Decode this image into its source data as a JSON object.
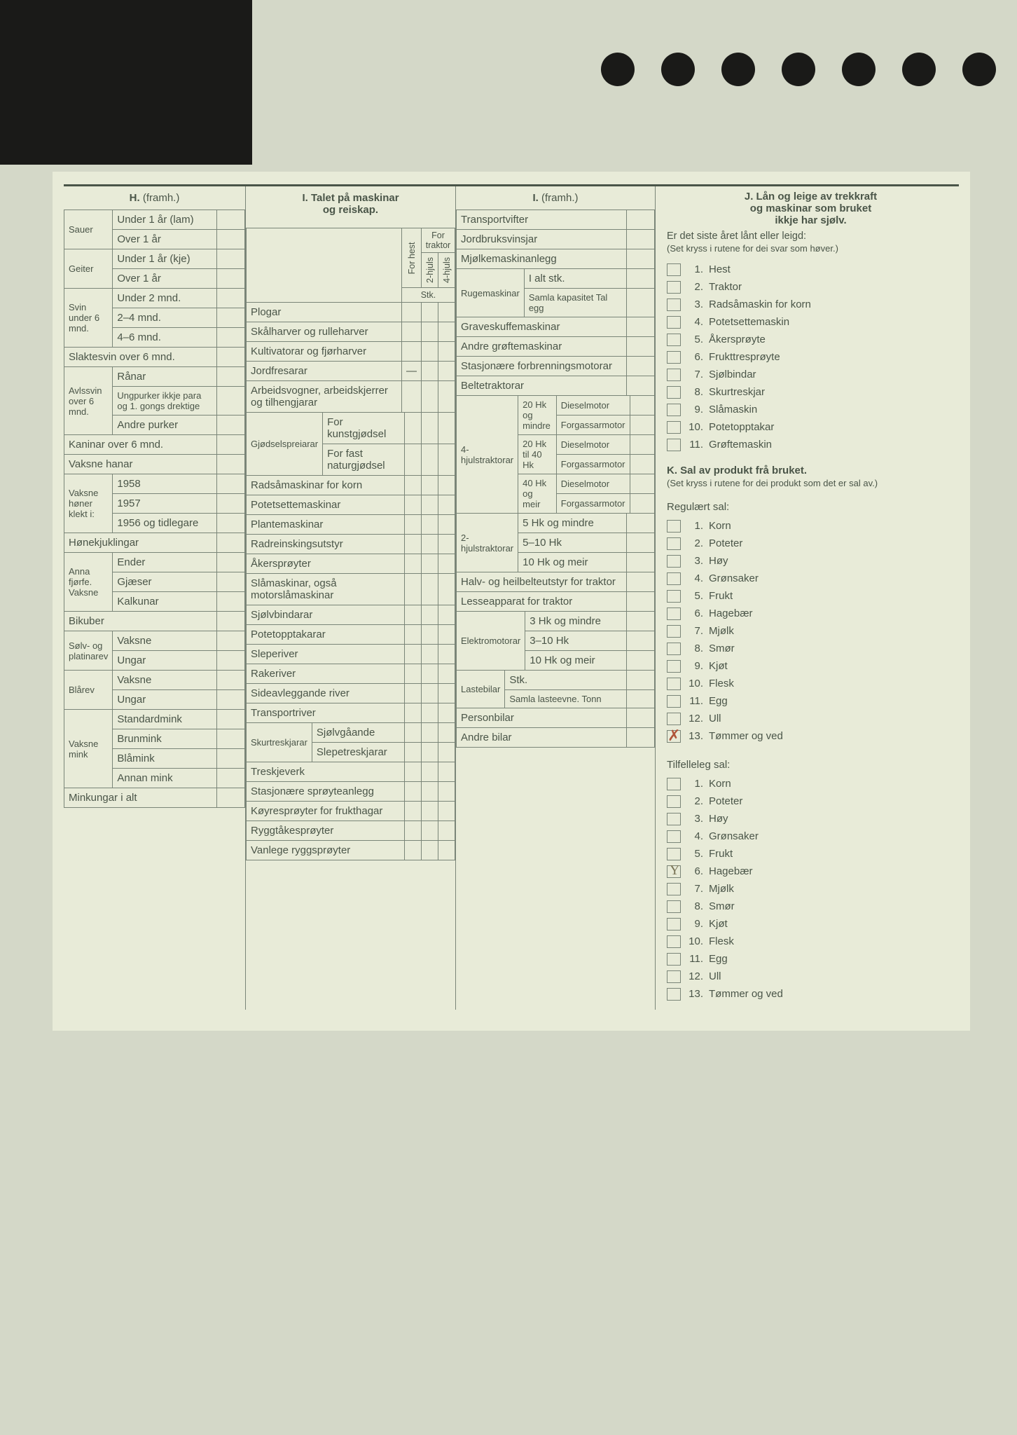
{
  "background_color": "#d4d8c8",
  "sheet_color": "#e8ebd8",
  "border_color": "#7a8578",
  "text_color": "#4a5548",
  "handwriting_color": "#b0553a",
  "sectionH": {
    "title": "H.",
    "title_suffix": "(framh.)",
    "groups": [
      {
        "label": "Sauer",
        "rows": [
          "Under 1 år (lam)",
          "Over 1 år"
        ]
      },
      {
        "label": "Geiter",
        "rows": [
          "Under 1 år (kje)",
          "Over 1 år"
        ]
      },
      {
        "label": "Svin under 6 mnd.",
        "rows": [
          "Under 2 mnd.",
          "2–4 mnd.",
          "4–6 mnd."
        ]
      },
      {
        "label": "Slaktesvin over 6 mnd.",
        "rows": []
      },
      {
        "label": "Avlssvin over 6 mnd.",
        "rows": [
          "Rånar",
          "Ungpurker ikkje para og 1. gongs drektige",
          "Andre purker"
        ]
      },
      {
        "label": "Kaninar over 6 mnd.",
        "rows": []
      },
      {
        "label": "Vaksne hanar",
        "rows": []
      },
      {
        "label": "Vaksne høner klekt i:",
        "rows": [
          "1958",
          "1957",
          "1956 og tidlegare"
        ]
      },
      {
        "label": "Hønekjuklingar",
        "rows": []
      },
      {
        "label": "Anna fjørfe. Vaksne",
        "rows": [
          "Ender",
          "Gjæser",
          "Kalkunar"
        ]
      },
      {
        "label": "Bikuber",
        "rows": []
      },
      {
        "label": "Sølv- og platinarev",
        "rows": [
          "Vaksne",
          "Ungar"
        ]
      },
      {
        "label": "Blårev",
        "rows": [
          "Vaksne",
          "Ungar"
        ]
      },
      {
        "label": "Vaksne mink",
        "rows": [
          "Standardmink",
          "Brunmink",
          "Blåmink",
          "Annan mink"
        ]
      },
      {
        "label": "Minkungar i alt",
        "rows": []
      }
    ]
  },
  "sectionI1": {
    "title_line1": "I. Talet på maskinar",
    "title_line2": "og reiskap.",
    "col_headers": {
      "group": "For traktor",
      "c1": "For hest",
      "c2": "2-hjuls",
      "c3": "4-hjuls"
    },
    "stk_label": "Stk.",
    "rows": [
      "Plogar",
      "Skålharver og rulleharver",
      "Kultivatorar og fjørharver",
      "Jordfresarar",
      "Arbeidsvogner, arbeidskjerrer og tilhengjarar"
    ],
    "gjodsel": {
      "label": "Gjødselspreiarar",
      "rows": [
        "For kunstgjødsel",
        "For fast naturgjødsel"
      ]
    },
    "rows2": [
      "Radsåmaskinar for korn",
      "Potetsettemaskinar",
      "Plantemaskinar",
      "Radreinskingsutstyr",
      "Åkersprøyter",
      "Slåmaskinar, også motorslåmaskinar",
      "Sjølvbindarar",
      "Potetopptakarar",
      "Sleperiver",
      "Rakeriver",
      "Sideavleggande river",
      "Transportriver"
    ],
    "skur": {
      "label": "Skurtreskjarar",
      "rows": [
        "Sjølvgåande",
        "Slepetreskjarar"
      ]
    },
    "rows3": [
      "Treskjeverk",
      "Stasjonære sprøyteanlegg",
      "Køyresprøyter for frukthagar",
      "Ryggtåkesprøyter",
      "Vanlege ryggsprøyter"
    ]
  },
  "sectionI2": {
    "title": "I.",
    "title_suffix": "(framh.)",
    "rows_top": [
      "Transportvifter",
      "Jordbruksvinsjar",
      "Mjølkemaskinanlegg"
    ],
    "ruge": {
      "label": "Rugemaskinar",
      "rows": [
        "I alt stk.",
        "Samla kapasitet Tal egg"
      ]
    },
    "rows_mid": [
      "Graveskuffemaskinar",
      "Andre grøftemaskinar",
      "Stasjonære forbrenningsmotorar",
      "Beltetraktorar"
    ],
    "traktor4": {
      "label": "4-hjulstraktorar",
      "groups": [
        {
          "hk": "20 Hk og mindre",
          "rows": [
            "Dieselmotor",
            "Forgassarmotor"
          ]
        },
        {
          "hk": "20 Hk til 40 Hk",
          "rows": [
            "Dieselmotor",
            "Forgassarmotor"
          ]
        },
        {
          "hk": "40 Hk og meir",
          "rows": [
            "Dieselmotor",
            "Forgassarmotor"
          ]
        }
      ]
    },
    "traktor2": {
      "label": "2-hjulstraktorar",
      "rows": [
        "5 Hk og mindre",
        "5–10 Hk",
        "10 Hk og meir"
      ]
    },
    "rows_bot1": [
      "Halv- og heilbelteutstyr for traktor",
      "Lesseapparat for traktor"
    ],
    "elektro": {
      "label": "Elektromotorar",
      "rows": [
        "3 Hk og mindre",
        "3–10 Hk",
        "10 Hk og meir"
      ]
    },
    "laste": {
      "label": "Lastebilar",
      "rows": [
        "Stk.",
        "Samla lasteevne. Tonn"
      ]
    },
    "rows_bot2": [
      "Personbilar",
      "Andre bilar"
    ]
  },
  "sectionJ": {
    "title_line1": "J. Lån og leige av trekkraft",
    "title_line2": "og maskinar som bruket",
    "title_line3": "ikkje har sjølv.",
    "intro": "Er det siste året lånt eller leigd:",
    "note": "(Set kryss i rutene for dei svar som høver.)",
    "items": [
      "Hest",
      "Traktor",
      "Radsåmaskin for korn",
      "Potetsettemaskin",
      "Åkersprøyte",
      "Frukttresprøyte",
      "Sjølbindar",
      "Skurtreskjar",
      "Slåmaskin",
      "Potetopptakar",
      "Grøftemaskin"
    ]
  },
  "sectionK": {
    "title": "K. Sal av produkt frå bruket.",
    "note": "(Set kryss i rutene for dei produkt som det er sal av.)",
    "sub1": "Regulært sal:",
    "items1": [
      "Korn",
      "Poteter",
      "Høy",
      "Grønsaker",
      "Frukt",
      "Hagebær",
      "Mjølk",
      "Smør",
      "Kjøt",
      "Flesk",
      "Egg",
      "Ull",
      "Tømmer og ved"
    ],
    "sub2": "Tilfelleleg sal:",
    "items2": [
      "Korn",
      "Poteter",
      "Høy",
      "Grønsaker",
      "Frukt",
      "Hagebær",
      "Mjølk",
      "Smør",
      "Kjøt",
      "Flesk",
      "Egg",
      "Ull",
      "Tømmer og ved"
    ],
    "marks": {
      "regular_last_x": true,
      "occasional_6_y": true
    }
  }
}
